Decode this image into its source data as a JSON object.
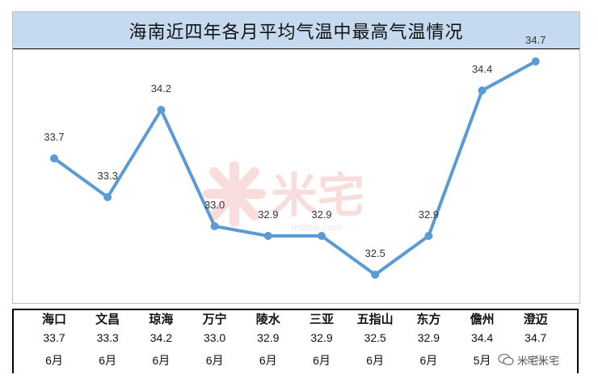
{
  "chart_data": {
    "type": "line",
    "title": "海南近四年各月平均气温中最高气温情况",
    "categories": [
      "海口",
      "文昌",
      "琼海",
      "万宁",
      "陵水",
      "三亚",
      "五指山",
      "东方",
      "儋州",
      "澄迈"
    ],
    "values": [
      33.7,
      33.3,
      34.2,
      33.0,
      32.9,
      32.9,
      32.5,
      32.9,
      34.4,
      34.7
    ],
    "value_labels": [
      "33.7",
      "33.3",
      "34.2",
      "33.0",
      "32.9",
      "32.9",
      "32.5",
      "32.9",
      "34.4",
      "34.7"
    ],
    "months": [
      "6月",
      "6月",
      "6月",
      "6月",
      "6月",
      "6月",
      "6月",
      "6月",
      "5月",
      "6月"
    ],
    "ylim": [
      32.0,
      35.0
    ],
    "grid": false,
    "line_color": "#5b9bd5",
    "title_bg": "#c5d9ef"
  },
  "watermark": {
    "text": "米宅",
    "url": "mizhai.com"
  },
  "brand": {
    "text": "米宅米宅"
  }
}
